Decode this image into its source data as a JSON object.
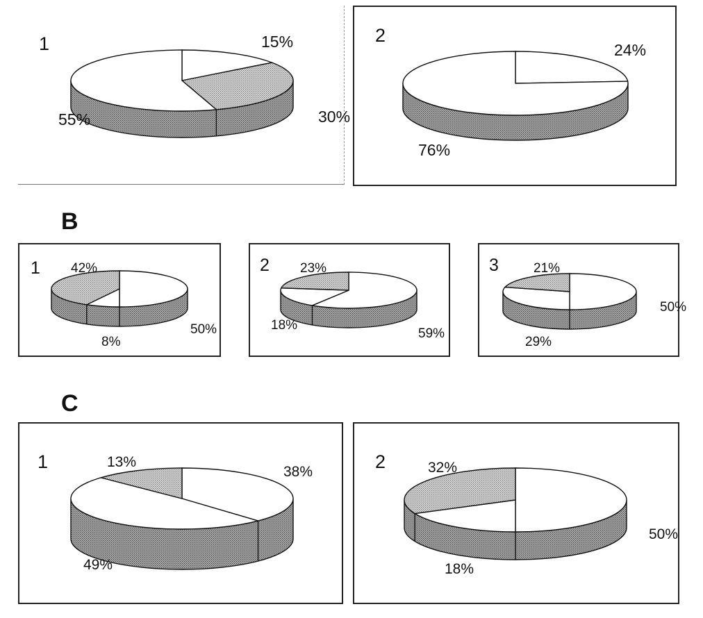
{
  "sections": {
    "a": {
      "label": ""
    },
    "b": {
      "label": "B"
    },
    "c": {
      "label": "C"
    }
  },
  "colors": {
    "unshaded": "#ffffff",
    "light_pattern": "#cfcfcf",
    "dark_pattern": "#9a9a9a",
    "side_pattern": "#8c8c8c",
    "outline": "#111111"
  },
  "chart_data": [
    {
      "type": "pie",
      "section": "A",
      "panel_label": "1",
      "slices": [
        {
          "label": "15%",
          "value": 15,
          "fill": "white"
        },
        {
          "label": "30%",
          "value": 30,
          "fill": "light"
        },
        {
          "label": "55%",
          "value": 55,
          "fill": "white"
        }
      ]
    },
    {
      "type": "pie",
      "section": "A",
      "panel_label": "2",
      "slices": [
        {
          "label": "24%",
          "value": 24,
          "fill": "white"
        },
        {
          "label": "76%",
          "value": 76,
          "fill": "white"
        }
      ]
    },
    {
      "type": "pie",
      "section": "B",
      "panel_label": "1",
      "slices": [
        {
          "label": "50%",
          "value": 50,
          "fill": "white"
        },
        {
          "label": "8%",
          "value": 8,
          "fill": "white"
        },
        {
          "label": "42%",
          "value": 42,
          "fill": "light"
        }
      ]
    },
    {
      "type": "pie",
      "section": "B",
      "panel_label": "2",
      "slices": [
        {
          "label": "59%",
          "value": 59,
          "fill": "white"
        },
        {
          "label": "18%",
          "value": 18,
          "fill": "white"
        },
        {
          "label": "23%",
          "value": 23,
          "fill": "light"
        }
      ]
    },
    {
      "type": "pie",
      "section": "B",
      "panel_label": "3",
      "slices": [
        {
          "label": "50%",
          "value": 50,
          "fill": "white"
        },
        {
          "label": "29%",
          "value": 29,
          "fill": "white"
        },
        {
          "label": "21%",
          "value": 21,
          "fill": "light"
        }
      ]
    },
    {
      "type": "pie",
      "section": "C",
      "panel_label": "1",
      "slices": [
        {
          "label": "38%",
          "value": 38,
          "fill": "white"
        },
        {
          "label": "49%",
          "value": 49,
          "fill": "white"
        },
        {
          "label": "13%",
          "value": 13,
          "fill": "light"
        }
      ]
    },
    {
      "type": "pie",
      "section": "C",
      "panel_label": "2",
      "slices": [
        {
          "label": "50%",
          "value": 50,
          "fill": "white"
        },
        {
          "label": "18%",
          "value": 18,
          "fill": "white"
        },
        {
          "label": "32%",
          "value": 32,
          "fill": "light"
        }
      ]
    }
  ]
}
